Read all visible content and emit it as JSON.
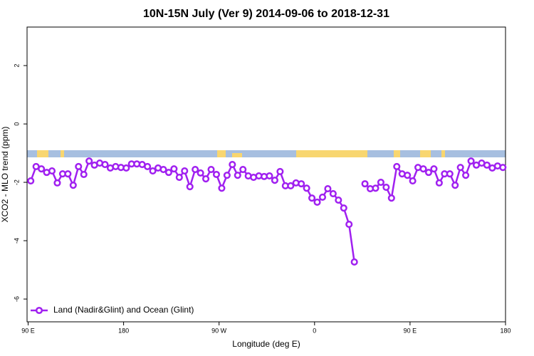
{
  "chart_data": {
    "type": "line",
    "title": "10N-15N July (Ver 9)   2014-09-06 to 2018-12-31",
    "x_label": "Longitude (deg E)",
    "y_label": "XCO2 - MLO trend (ppm)",
    "x": [
      92.5,
      97.5,
      102.5,
      107.5,
      112.5,
      117.5,
      122.5,
      127.5,
      132.5,
      137.5,
      142.5,
      147.5,
      152.5,
      157.5,
      162.5,
      167.5,
      172.5,
      177.5,
      182.5,
      187.5,
      192.5,
      197.5,
      202.5,
      207.5,
      212.5,
      217.5,
      222.5,
      227.5,
      232.5,
      237.5,
      242.5,
      247.5,
      252.5,
      257.5,
      262.5,
      267.5,
      272.5,
      277.5,
      282.5,
      287.5,
      292.5,
      297.5,
      302.5,
      307.5,
      312.5,
      317.5,
      322.5,
      327.5,
      332.5,
      337.5,
      342.5,
      347.5,
      352.5,
      357.5,
      362.5,
      367.5,
      372.5,
      377.5,
      382.5,
      387.5,
      392.5,
      397.5,
      402.5,
      407.5,
      412.5,
      417.5,
      422.5,
      427.5,
      432.5,
      437.5,
      442.5,
      447.5,
      452.5,
      457.5,
      462.5,
      467.5,
      472.5,
      477.5,
      482.5,
      487.5,
      492.5,
      497.5,
      502.5,
      507.5,
      512.5,
      517.5,
      522.5,
      527.5,
      532.5,
      537.5
    ],
    "series": [
      {
        "name": "Land (Nadir&Glint) and Ocean (Glint)",
        "color": "#a020f0",
        "values": [
          -1.95,
          -1.46,
          -1.54,
          -1.66,
          -1.61,
          -2.02,
          -1.71,
          -1.71,
          -2.1,
          -1.46,
          -1.73,
          -1.27,
          -1.41,
          -1.34,
          -1.39,
          -1.51,
          -1.46,
          -1.49,
          -1.51,
          -1.37,
          -1.37,
          -1.39,
          -1.46,
          -1.61,
          -1.51,
          -1.56,
          -1.66,
          -1.54,
          -1.83,
          -1.61,
          -2.15,
          -1.56,
          -1.68,
          -1.88,
          -1.56,
          -1.73,
          -2.2,
          -1.76,
          -1.39,
          -1.76,
          -1.56,
          -1.78,
          -1.83,
          -1.78,
          -1.8,
          -1.78,
          -1.93,
          -1.63,
          -2.12,
          -2.12,
          -2.02,
          -2.05,
          -2.2,
          -2.54,
          -2.68,
          -2.51,
          -2.22,
          -2.39,
          -2.61,
          -2.88,
          -3.44,
          -4.73,
          null,
          -2.05,
          -2.22,
          -2.2,
          -2.0,
          -2.17,
          -2.54,
          -1.46,
          -1.71,
          -1.76,
          -1.95,
          -1.49,
          -1.54,
          -1.66,
          -1.54,
          -2.02,
          -1.71,
          -1.71,
          -2.1,
          -1.49,
          -1.76,
          -1.27,
          -1.41,
          -1.34,
          -1.41,
          -1.51,
          -1.44,
          -1.49
        ]
      }
    ],
    "xlim": [
      89,
      540
    ],
    "xticks": [
      {
        "value": 90,
        "label": "90 E"
      },
      180,
      {
        "value": 270,
        "label": "90 W"
      },
      {
        "value": 360,
        "label": "0"
      },
      {
        "value": 450,
        "label": "90 E"
      },
      {
        "value": 540,
        "label": "180"
      }
    ],
    "ylim": [
      -6.78,
      3.32
    ],
    "yticks": [
      -6,
      -4,
      -2,
      0,
      2
    ],
    "legend": "bottom-left"
  }
}
